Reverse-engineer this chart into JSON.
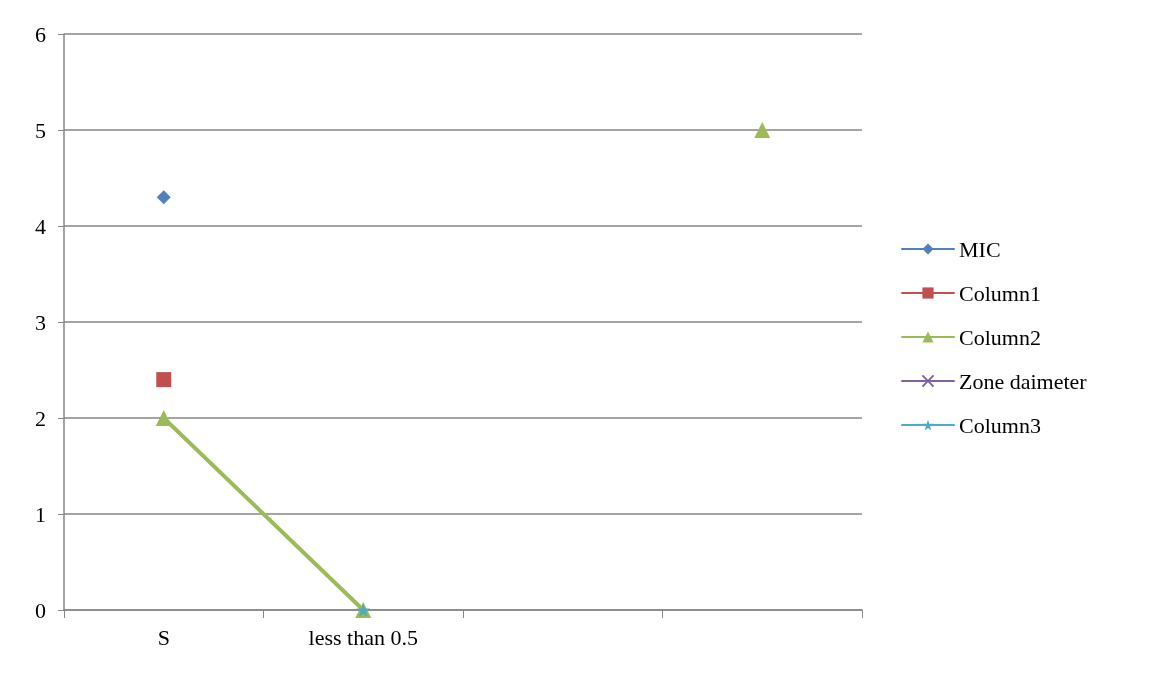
{
  "chart_data": {
    "type": "line",
    "categories": [
      "S",
      "less than 0.5",
      null,
      null
    ],
    "series": [
      {
        "name": "MIC",
        "color": "#4f81bd",
        "marker": "diamond",
        "values": [
          4.3,
          null,
          null,
          null
        ]
      },
      {
        "name": "Column1",
        "color": "#c0504d",
        "marker": "square",
        "values": [
          2.4,
          null,
          null,
          null
        ]
      },
      {
        "name": "Column2",
        "color": "#9bbb59",
        "marker": "triangle",
        "values": [
          2,
          0,
          null,
          5
        ]
      },
      {
        "name": "Zone daimeter",
        "color": "#8064a2",
        "marker": "cross",
        "values": [
          null,
          null,
          null,
          null
        ]
      },
      {
        "name": "Column3",
        "color": "#4bacc6",
        "marker": "star",
        "values": [
          null,
          0,
          null,
          null
        ]
      }
    ],
    "ylim": [
      0,
      6
    ],
    "yticks": [
      0,
      1,
      2,
      3,
      4,
      5,
      6
    ],
    "grid": "y",
    "legend": "right",
    "line_style": "solid"
  }
}
